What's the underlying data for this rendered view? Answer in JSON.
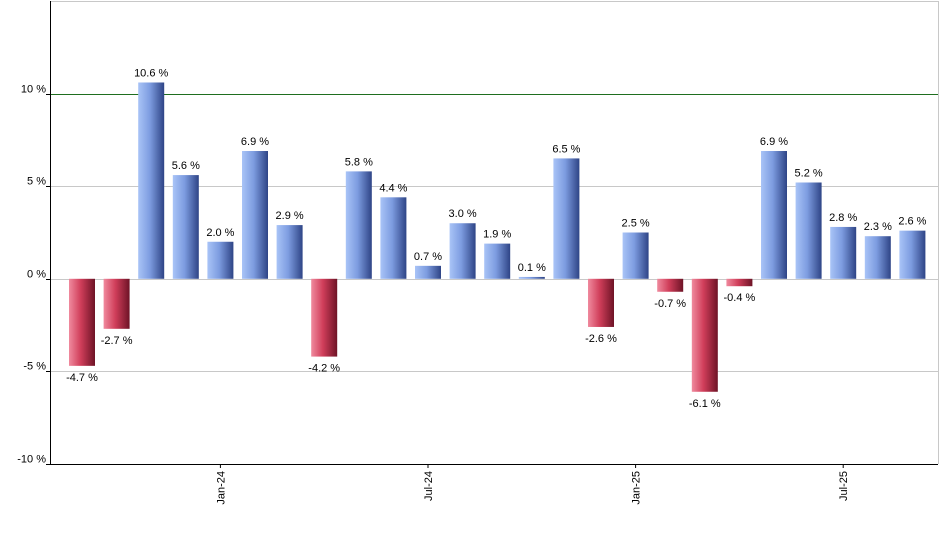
{
  "chart_data": {
    "type": "bar",
    "title": "",
    "xlabel": "",
    "ylabel": "",
    "ylim": [
      -10,
      15
    ],
    "y_ticks": [
      -10,
      -5,
      0,
      5,
      10
    ],
    "y_tick_labels": [
      "-10 %",
      "-5 %",
      "0 %",
      "5 %",
      "10 %"
    ],
    "reference_line": {
      "value": 10,
      "color": "#1f6e1f"
    },
    "grid": true,
    "x_tick_labels": [
      {
        "label": "Jan-24",
        "index": 4
      },
      {
        "label": "Jul-24",
        "index": 10
      },
      {
        "label": "Jan-25",
        "index": 16
      },
      {
        "label": "Jul-25",
        "index": 22
      }
    ],
    "values": [
      -4.7,
      -2.7,
      10.6,
      5.6,
      2.0,
      6.9,
      2.9,
      -4.2,
      5.8,
      4.4,
      0.7,
      3.0,
      1.9,
      0.1,
      6.5,
      -2.6,
      2.5,
      -0.7,
      -6.1,
      -0.4,
      6.9,
      5.2,
      2.8,
      2.3,
      2.6
    ],
    "value_labels": [
      "-4.7 %",
      "-2.7 %",
      "10.6 %",
      "5.6 %",
      "2.0 %",
      "6.9 %",
      "2.9 %",
      "-4.2 %",
      "5.8 %",
      "4.4 %",
      "0.7 %",
      "3.0 %",
      "1.9 %",
      "0.1 %",
      "6.5 %",
      "-2.6 %",
      "2.5 %",
      "-0.7 %",
      "-6.1 %",
      "-0.4 %",
      "6.9 %",
      "5.2 %",
      "2.8 %",
      "2.3 %",
      "2.6 %"
    ],
    "colors": {
      "positive": "#6f8fd8",
      "negative": "#c0304a",
      "grid": "#c8c8c8",
      "axis": "#000000"
    }
  }
}
